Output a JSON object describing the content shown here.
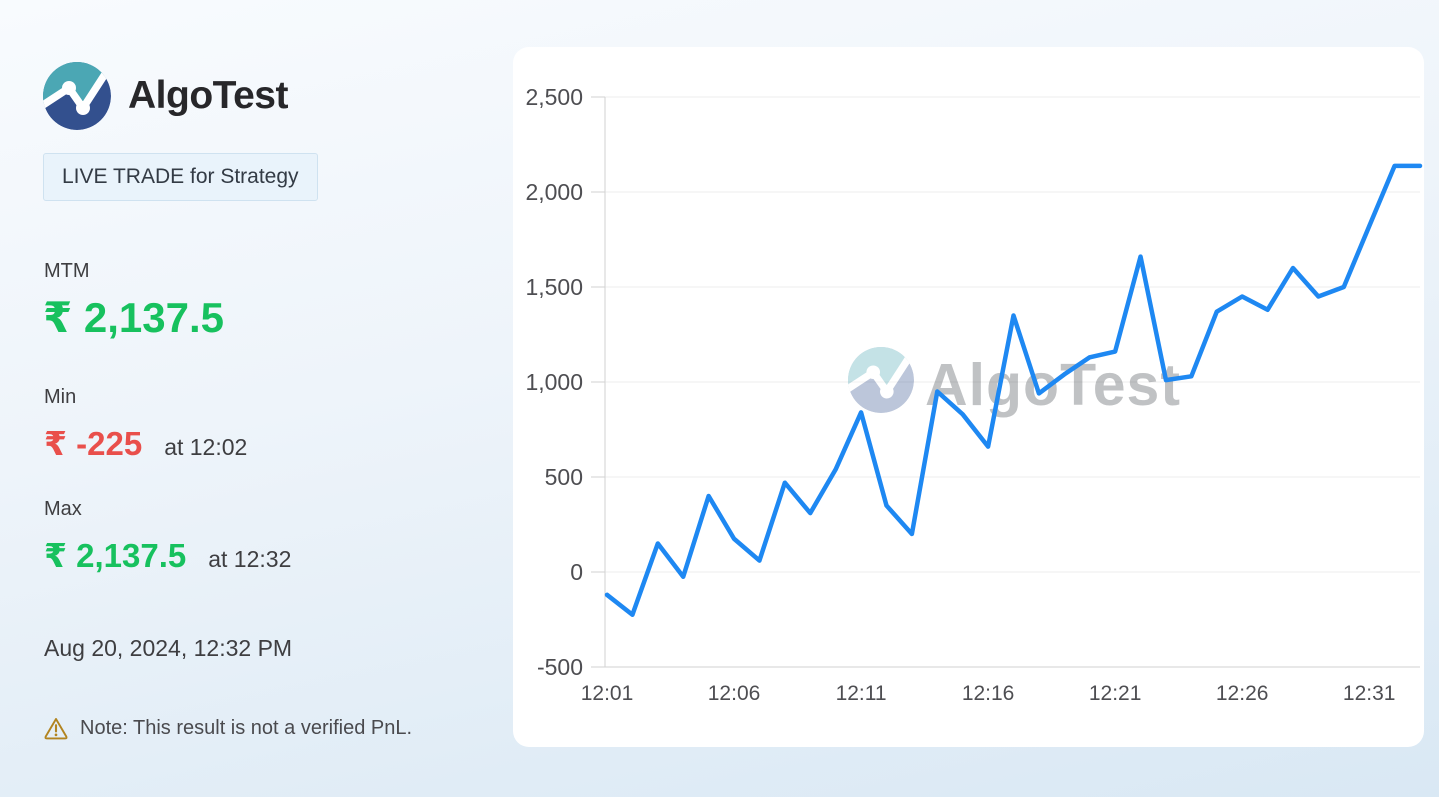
{
  "brand": {
    "name": "AlgoTest",
    "logo_icon": "algotest-chart-circle-logo"
  },
  "badge": {
    "text": "LIVE TRADE for Strategy"
  },
  "stats": {
    "mtm_label": "MTM",
    "mtm_value": "₹ 2,137.5",
    "min_label": "Min",
    "min_value": "₹ -225",
    "min_time": "at 12:02",
    "max_label": "Max",
    "max_value": "₹ 2,137.5",
    "max_time": "at 12:32"
  },
  "timestamp": "Aug 20, 2024, 12:32 PM",
  "note": {
    "icon": "warning-triangle-icon",
    "text": "Note: This result is not a verified PnL."
  },
  "colors": {
    "brand_teal": "#4BA7B4",
    "brand_navy": "#33508E",
    "positive_green": "#17c15e",
    "negative_red": "#e94f4b",
    "chart_line_blue": "#1e88f2",
    "badge_bg": "#e9f3fb",
    "badge_border": "#cfe2f0",
    "warning_amber": "#b28420"
  },
  "chart_data": {
    "type": "line",
    "title": "",
    "xlabel": "",
    "ylabel": "",
    "x": [
      "12:01",
      "12:02",
      "12:03",
      "12:04",
      "12:05",
      "12:06",
      "12:07",
      "12:08",
      "12:09",
      "12:10",
      "12:11",
      "12:12",
      "12:13",
      "12:14",
      "12:15",
      "12:16",
      "12:17",
      "12:18",
      "12:19",
      "12:20",
      "12:21",
      "12:22",
      "12:23",
      "12:24",
      "12:25",
      "12:26",
      "12:27",
      "12:28",
      "12:29",
      "12:30",
      "12:31",
      "12:32"
    ],
    "values": [
      -120,
      -225,
      150,
      -25,
      400,
      175,
      60,
      470,
      310,
      540,
      840,
      350,
      200,
      950,
      830,
      660,
      1350,
      940,
      1040,
      1130,
      1160,
      1660,
      1010,
      1030,
      1370,
      1450,
      1380,
      1600,
      1450,
      1500,
      1820,
      2137.5
    ],
    "xticks": [
      "12:01",
      "12:06",
      "12:11",
      "12:16",
      "12:21",
      "12:26",
      "12:31"
    ],
    "yticks": [
      -500,
      0,
      500,
      1000,
      1500,
      2000,
      2500
    ],
    "ylim": [
      -500,
      2500
    ],
    "x_domain_minutes": [
      1,
      33
    ],
    "grid": "horizontal",
    "legend": "none",
    "line_color": "#1e88f2",
    "extend_flat_to_right_edge": true,
    "watermark": "AlgoTest"
  }
}
